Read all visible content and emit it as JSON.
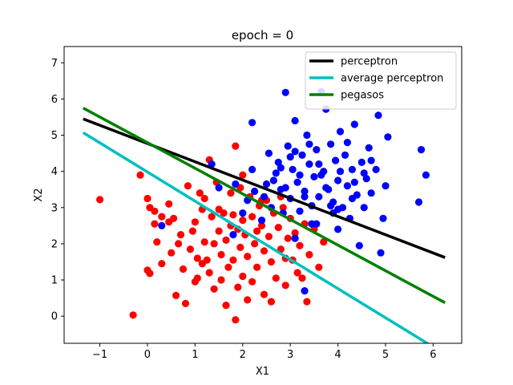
{
  "chart_data": {
    "type": "scatter",
    "title": "epoch = 0",
    "xlabel": "X1",
    "ylabel": "X2",
    "xlim": [
      -1.75,
      6.6
    ],
    "ylim": [
      -0.75,
      7.45
    ],
    "xticks": [
      -1,
      0,
      1,
      2,
      3,
      4,
      5,
      6
    ],
    "yticks": [
      0,
      1,
      2,
      3,
      4,
      5,
      6,
      7
    ],
    "grid": false,
    "legend_position": "top-right",
    "scatter_series": [
      {
        "color": "#ff0000",
        "points": [
          [
            -1.0,
            3.22
          ],
          [
            -0.3,
            0.03
          ],
          [
            -0.15,
            3.9
          ],
          [
            0.0,
            3.25
          ],
          [
            0.0,
            1.27
          ],
          [
            0.05,
            1.18
          ],
          [
            0.05,
            3.0
          ],
          [
            0.15,
            2.9
          ],
          [
            0.15,
            2.55
          ],
          [
            0.3,
            1.45
          ],
          [
            0.3,
            2.75
          ],
          [
            0.45,
            3.1
          ],
          [
            0.45,
            2.6
          ],
          [
            0.5,
            1.75
          ],
          [
            0.6,
            0.57
          ],
          [
            0.65,
            2.0
          ],
          [
            0.7,
            2.25
          ],
          [
            0.75,
            1.3
          ],
          [
            0.8,
            0.35
          ],
          [
            0.85,
            3.6
          ],
          [
            0.9,
            1.85
          ],
          [
            0.95,
            2.35
          ],
          [
            1.0,
            2.6
          ],
          [
            1.05,
            1.05
          ],
          [
            1.05,
            1.6
          ],
          [
            1.1,
            3.4
          ],
          [
            1.15,
            2.95
          ],
          [
            1.2,
            2.05
          ],
          [
            1.25,
            1.55
          ],
          [
            1.3,
            4.32
          ],
          [
            1.3,
            1.2
          ],
          [
            1.35,
            2.75
          ],
          [
            1.4,
            0.75
          ],
          [
            1.45,
            3.7
          ],
          [
            1.5,
            2.95
          ],
          [
            1.5,
            2.35
          ],
          [
            1.55,
            1.7
          ],
          [
            1.55,
            1.0
          ],
          [
            1.6,
            2.85
          ],
          [
            1.65,
            2.1
          ],
          [
            1.65,
            0.3
          ],
          [
            1.7,
            1.35
          ],
          [
            1.75,
            3.4
          ],
          [
            1.8,
            2.8
          ],
          [
            1.8,
            1.55
          ],
          [
            1.85,
            -0.1
          ],
          [
            1.85,
            4.7
          ],
          [
            1.9,
            2.4
          ],
          [
            1.9,
            0.8
          ],
          [
            1.95,
            1.9
          ],
          [
            1.95,
            3.55
          ],
          [
            2.0,
            2.65
          ],
          [
            2.0,
            1.1
          ],
          [
            2.05,
            2.25
          ],
          [
            2.1,
            1.65
          ],
          [
            2.15,
            3.3
          ],
          [
            2.2,
            0.95
          ],
          [
            2.2,
            2.75
          ],
          [
            2.25,
            2.0
          ],
          [
            2.3,
            1.35
          ],
          [
            2.35,
            3.05
          ],
          [
            2.4,
            2.5
          ],
          [
            2.45,
            1.8
          ],
          [
            2.45,
            0.6
          ],
          [
            2.5,
            3.2
          ],
          [
            2.55,
            2.2
          ],
          [
            2.6,
            1.5
          ],
          [
            2.65,
            2.85
          ],
          [
            2.7,
            1.05
          ],
          [
            2.75,
            2.45
          ],
          [
            2.8,
            1.85
          ],
          [
            2.85,
            3.0
          ],
          [
            2.9,
            0.85
          ],
          [
            2.95,
            2.15
          ],
          [
            3.0,
            2.7
          ],
          [
            3.05,
            1.55
          ],
          [
            3.1,
            2.3
          ],
          [
            3.15,
            1.2
          ],
          [
            3.2,
            1.95
          ],
          [
            3.3,
            2.55
          ],
          [
            3.35,
            0.4
          ],
          [
            3.4,
            1.7
          ],
          [
            3.5,
            2.4
          ],
          [
            3.6,
            1.35
          ],
          [
            3.7,
            2.05
          ],
          [
            1.2,
            3.25
          ],
          [
            0.55,
            2.7
          ],
          [
            2.0,
            3.9
          ],
          [
            2.8,
            3.3
          ],
          [
            1.4,
            2.0
          ],
          [
            2.3,
            2.35
          ],
          [
            2.6,
            0.4
          ],
          [
            1.0,
            0.95
          ],
          [
            0.2,
            2.05
          ],
          [
            3.25,
            1.05
          ],
          [
            1.75,
            2.5
          ],
          [
            2.4,
            3.2
          ],
          [
            2.9,
            1.6
          ],
          [
            1.15,
            1.45
          ],
          [
            2.1,
            0.45
          ]
        ]
      },
      {
        "color": "#0000ff",
        "points": [
          [
            0.3,
            2.5
          ],
          [
            1.35,
            4.2
          ],
          [
            1.5,
            3.55
          ],
          [
            1.8,
            2.25
          ],
          [
            1.85,
            3.65
          ],
          [
            2.0,
            2.85
          ],
          [
            2.2,
            4.05
          ],
          [
            2.2,
            5.35
          ],
          [
            2.25,
            3.45
          ],
          [
            2.4,
            2.65
          ],
          [
            2.5,
            3.65
          ],
          [
            2.55,
            4.5
          ],
          [
            2.6,
            3.0
          ],
          [
            2.7,
            3.95
          ],
          [
            2.75,
            4.25
          ],
          [
            2.8,
            3.5
          ],
          [
            2.85,
            2.85
          ],
          [
            2.9,
            6.18
          ],
          [
            2.95,
            4.7
          ],
          [
            3.0,
            3.25
          ],
          [
            3.05,
            4.05
          ],
          [
            3.1,
            5.4
          ],
          [
            3.15,
            3.7
          ],
          [
            3.2,
            2.9
          ],
          [
            3.25,
            4.45
          ],
          [
            3.3,
            3.45
          ],
          [
            3.35,
            5.0
          ],
          [
            3.4,
            4.2
          ],
          [
            3.45,
            3.05
          ],
          [
            3.5,
            3.85
          ],
          [
            3.55,
            4.6
          ],
          [
            3.6,
            3.3
          ],
          [
            3.65,
            6.2
          ],
          [
            3.7,
            4.0
          ],
          [
            3.75,
            5.72
          ],
          [
            3.8,
            3.5
          ],
          [
            3.85,
            4.75
          ],
          [
            3.9,
            3.15
          ],
          [
            3.95,
            4.3
          ],
          [
            4.0,
            3.75
          ],
          [
            4.05,
            5.1
          ],
          [
            4.1,
            3.0
          ],
          [
            4.15,
            4.45
          ],
          [
            4.2,
            3.6
          ],
          [
            4.25,
            2.7
          ],
          [
            4.3,
            4.05
          ],
          [
            4.35,
            5.3
          ],
          [
            4.4,
            3.35
          ],
          [
            4.5,
            4.25
          ],
          [
            4.55,
            3.0
          ],
          [
            4.6,
            3.8
          ],
          [
            4.65,
            4.65
          ],
          [
            4.7,
            3.4
          ],
          [
            4.8,
            4.05
          ],
          [
            4.85,
            5.55
          ],
          [
            4.95,
            2.7
          ],
          [
            5.0,
            3.6
          ],
          [
            5.05,
            4.95
          ],
          [
            5.75,
            4.6
          ],
          [
            5.7,
            3.15
          ],
          [
            5.85,
            3.9
          ],
          [
            4.9,
            1.75
          ],
          [
            4.45,
            1.95
          ],
          [
            4.0,
            2.4
          ],
          [
            3.55,
            2.55
          ],
          [
            3.1,
            2.15
          ],
          [
            3.3,
            0.7
          ],
          [
            3.9,
            2.85
          ],
          [
            4.3,
            3.25
          ],
          [
            2.65,
            3.75
          ],
          [
            3.0,
            4.4
          ],
          [
            3.2,
            3.9
          ],
          [
            3.4,
            4.75
          ],
          [
            3.75,
            3.55
          ],
          [
            4.05,
            4.0
          ],
          [
            2.45,
            3.3
          ],
          [
            3.6,
            4.2
          ],
          [
            3.85,
            3.05
          ],
          [
            4.2,
            4.8
          ],
          [
            4.7,
            4.3
          ],
          [
            2.1,
            3.2
          ],
          [
            3.45,
            2.55
          ],
          [
            4.55,
            3.95
          ],
          [
            2.9,
            3.55
          ],
          [
            3.3,
            3.3
          ],
          [
            3.65,
            3.9
          ],
          [
            4.0,
            2.95
          ],
          [
            3.1,
            4.55
          ],
          [
            2.8,
            4.1
          ],
          [
            4.35,
            3.7
          ]
        ]
      }
    ],
    "lines": [
      {
        "name": "perceptron",
        "color": "#000000",
        "points": [
          [
            -1.35,
            5.45
          ],
          [
            6.25,
            1.62
          ]
        ]
      },
      {
        "name": "average perceptron",
        "color": "#00bfbf",
        "points": [
          [
            -1.35,
            5.07
          ],
          [
            6.0,
            -0.85
          ]
        ]
      },
      {
        "name": "pegasos",
        "color": "#008000",
        "points": [
          [
            -1.35,
            5.75
          ],
          [
            6.25,
            0.37
          ]
        ]
      }
    ]
  }
}
